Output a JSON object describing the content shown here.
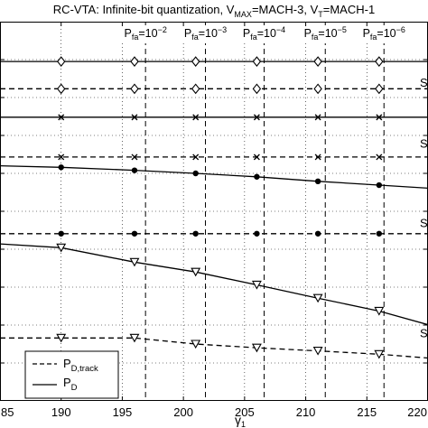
{
  "chart_data": {
    "type": "line",
    "title": {
      "main": "RC-VTA: Infinite-bit quantization, V",
      "sub1": "MAX",
      "mid": "=MACH-3, V",
      "sub2": "T",
      "end": "=MACH-1"
    },
    "xlabel": {
      "base": "γ",
      "sub": "1"
    },
    "xlim": [
      185,
      220
    ],
    "ylim": [
      0,
      1
    ],
    "x_ticks": [
      "85",
      "190",
      "195",
      "200",
      "205",
      "210",
      "215",
      "220"
    ],
    "grid": true,
    "pfa_lines": [
      {
        "x": 196.9,
        "base": "P",
        "sub": "fa",
        "eq": "=10",
        "exp": "−2"
      },
      {
        "x": 201.8,
        "base": "P",
        "sub": "fa",
        "eq": "=10",
        "exp": "−3"
      },
      {
        "x": 206.6,
        "base": "P",
        "sub": "fa",
        "eq": "=10",
        "exp": "−4"
      },
      {
        "x": 211.6,
        "base": "P",
        "sub": "fa",
        "eq": "=10",
        "exp": "−5"
      },
      {
        "x": 216.4,
        "base": "P",
        "sub": "fa",
        "eq": "=10",
        "exp": "−6"
      }
    ],
    "side_labels": [
      "S",
      "S",
      "S",
      "S"
    ],
    "x": [
      185,
      190,
      196,
      201,
      206,
      211,
      216,
      220
    ],
    "series": [
      {
        "marker": "diamond",
        "style": "solid",
        "values": [
          0.895,
          0.895,
          0.895,
          0.895,
          0.895,
          0.895,
          0.895,
          0.895
        ]
      },
      {
        "marker": "diamond",
        "style": "dashed",
        "values": [
          0.823,
          0.823,
          0.823,
          0.823,
          0.823,
          0.823,
          0.823,
          0.823
        ]
      },
      {
        "marker": "x",
        "style": "solid",
        "values": [
          0.748,
          0.748,
          0.748,
          0.748,
          0.748,
          0.748,
          0.748,
          0.748
        ]
      },
      {
        "marker": "x",
        "style": "dashed",
        "values": [
          0.643,
          0.643,
          0.643,
          0.643,
          0.643,
          0.643,
          0.643,
          0.643
        ]
      },
      {
        "marker": "dot",
        "style": "solid",
        "values": [
          0.62,
          0.616,
          0.608,
          0.6,
          0.591,
          0.579,
          0.569,
          0.561
        ]
      },
      {
        "marker": "dot",
        "style": "dashed",
        "values": [
          0.441,
          0.441,
          0.441,
          0.441,
          0.441,
          0.441,
          0.441,
          0.441
        ]
      },
      {
        "marker": "triangle",
        "style": "solid",
        "values": [
          0.414,
          0.404,
          0.366,
          0.34,
          0.306,
          0.271,
          0.237,
          0.201
        ]
      },
      {
        "marker": "triangle",
        "style": "dashed",
        "values": [
          0.166,
          0.166,
          0.166,
          0.15,
          0.14,
          0.132,
          0.123,
          0.113
        ]
      }
    ],
    "legend": {
      "position": "bottom-left",
      "entries": [
        {
          "style": "dashed",
          "base": "P",
          "sub": "D,track"
        },
        {
          "style": "solid",
          "base": "P",
          "sub": "D"
        }
      ]
    }
  }
}
